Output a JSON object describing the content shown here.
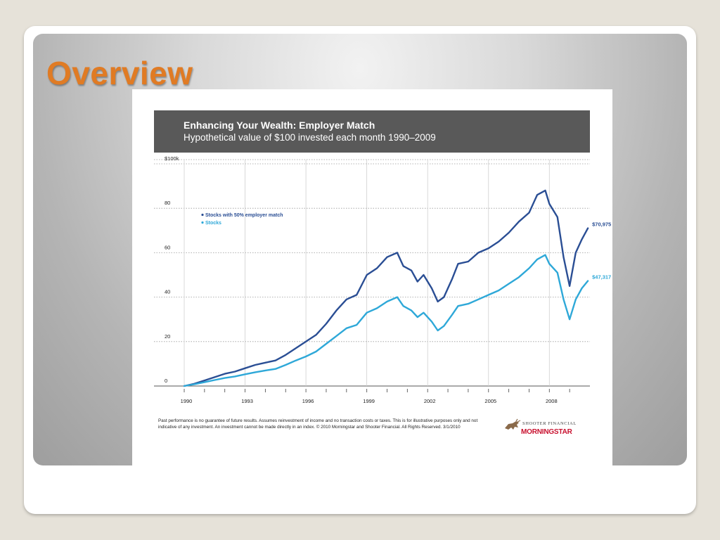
{
  "slide": {
    "title": "Overview"
  },
  "figure": {
    "disclaimer": "Past performance is no guarantee of future results. Assumes reinvestment of income and no transaction costs or taxes. This is for illustrative purposes only and not indicative of any investment. An investment cannot be made directly in an index. © 2010 Morningstar and Shooter Financial. All Rights Reserved. 3/1/2010",
    "logo": {
      "firm": "SHOOTER FINANCIAL",
      "partner": "MORNINGSTAR"
    }
  },
  "colors": {
    "match": "#2a4e94",
    "stocks": "#2ea8d8",
    "header": "#595959",
    "title": "#e07b24"
  },
  "chart_data": {
    "type": "line",
    "title": "Enhancing Your Wealth: Employer Match",
    "subtitle": "Hypothetical value of $100 invested each month 1990–2009",
    "xlim": [
      1990,
      2010
    ],
    "ylim": [
      0,
      100
    ],
    "x_ticks": [
      1990,
      1993,
      1996,
      1999,
      2002,
      2005,
      2008
    ],
    "y_ticks": [
      {
        "value": 0,
        "label": "0"
      },
      {
        "value": 20,
        "label": "20"
      },
      {
        "value": 40,
        "label": "40"
      },
      {
        "value": 60,
        "label": "60"
      },
      {
        "value": 80,
        "label": "80"
      },
      {
        "value": 100,
        "label": "$100k"
      }
    ],
    "grid": true,
    "legend": "top-left",
    "series": [
      {
        "name": "Stocks with 50% employer match",
        "end_label": "$70,975",
        "x": [
          1990.0,
          1990.5,
          1991.0,
          1991.5,
          1992.0,
          1992.5,
          1993.0,
          1993.5,
          1994.0,
          1994.5,
          1995.0,
          1995.5,
          1996.0,
          1996.5,
          1997.0,
          1997.5,
          1998.0,
          1998.5,
          1999.0,
          1999.5,
          2000.0,
          2000.5,
          2000.8,
          2001.2,
          2001.5,
          2001.8,
          2002.2,
          2002.5,
          2002.8,
          2003.2,
          2003.5,
          2004.0,
          2004.5,
          2005.0,
          2005.5,
          2006.0,
          2006.5,
          2007.0,
          2007.4,
          2007.8,
          2008.0,
          2008.4,
          2008.7,
          2009.0,
          2009.3,
          2009.6,
          2009.9
        ],
        "y": [
          0.0,
          1.0,
          2.5,
          4.0,
          5.5,
          6.5,
          8.0,
          9.5,
          10.5,
          11.5,
          14.0,
          17.0,
          20.0,
          23.0,
          28.0,
          34.0,
          39.0,
          41.0,
          50.0,
          53.0,
          58.0,
          60.0,
          54.0,
          52.0,
          47.0,
          50.0,
          44.0,
          38.0,
          40.0,
          48.0,
          55.0,
          56.0,
          60.0,
          62.0,
          65.0,
          69.0,
          74.0,
          78.0,
          86.0,
          88.0,
          82.0,
          76.0,
          58.0,
          45.0,
          60.0,
          66.0,
          71.0
        ]
      },
      {
        "name": "Stocks",
        "end_label": "$47,317",
        "x": [
          1990.0,
          1990.5,
          1991.0,
          1991.5,
          1992.0,
          1992.5,
          1993.0,
          1993.5,
          1994.0,
          1994.5,
          1995.0,
          1995.5,
          1996.0,
          1996.5,
          1997.0,
          1997.5,
          1998.0,
          1998.5,
          1999.0,
          1999.5,
          2000.0,
          2000.5,
          2000.8,
          2001.2,
          2001.5,
          2001.8,
          2002.2,
          2002.5,
          2002.8,
          2003.2,
          2003.5,
          2004.0,
          2004.5,
          2005.0,
          2005.5,
          2006.0,
          2006.5,
          2007.0,
          2007.4,
          2007.8,
          2008.0,
          2008.4,
          2008.7,
          2009.0,
          2009.3,
          2009.6,
          2009.9
        ],
        "y": [
          0.0,
          0.8,
          1.7,
          2.7,
          3.6,
          4.3,
          5.3,
          6.2,
          7.0,
          7.7,
          9.5,
          11.5,
          13.3,
          15.5,
          19.0,
          22.5,
          26.0,
          27.5,
          33.0,
          35.0,
          38.0,
          40.0,
          36.0,
          34.0,
          31.0,
          33.0,
          29.0,
          25.0,
          27.0,
          32.0,
          36.0,
          37.0,
          39.0,
          41.0,
          43.0,
          46.0,
          49.0,
          53.0,
          57.0,
          59.0,
          55.0,
          51.0,
          39.0,
          30.0,
          39.0,
          44.0,
          47.3
        ]
      }
    ]
  }
}
